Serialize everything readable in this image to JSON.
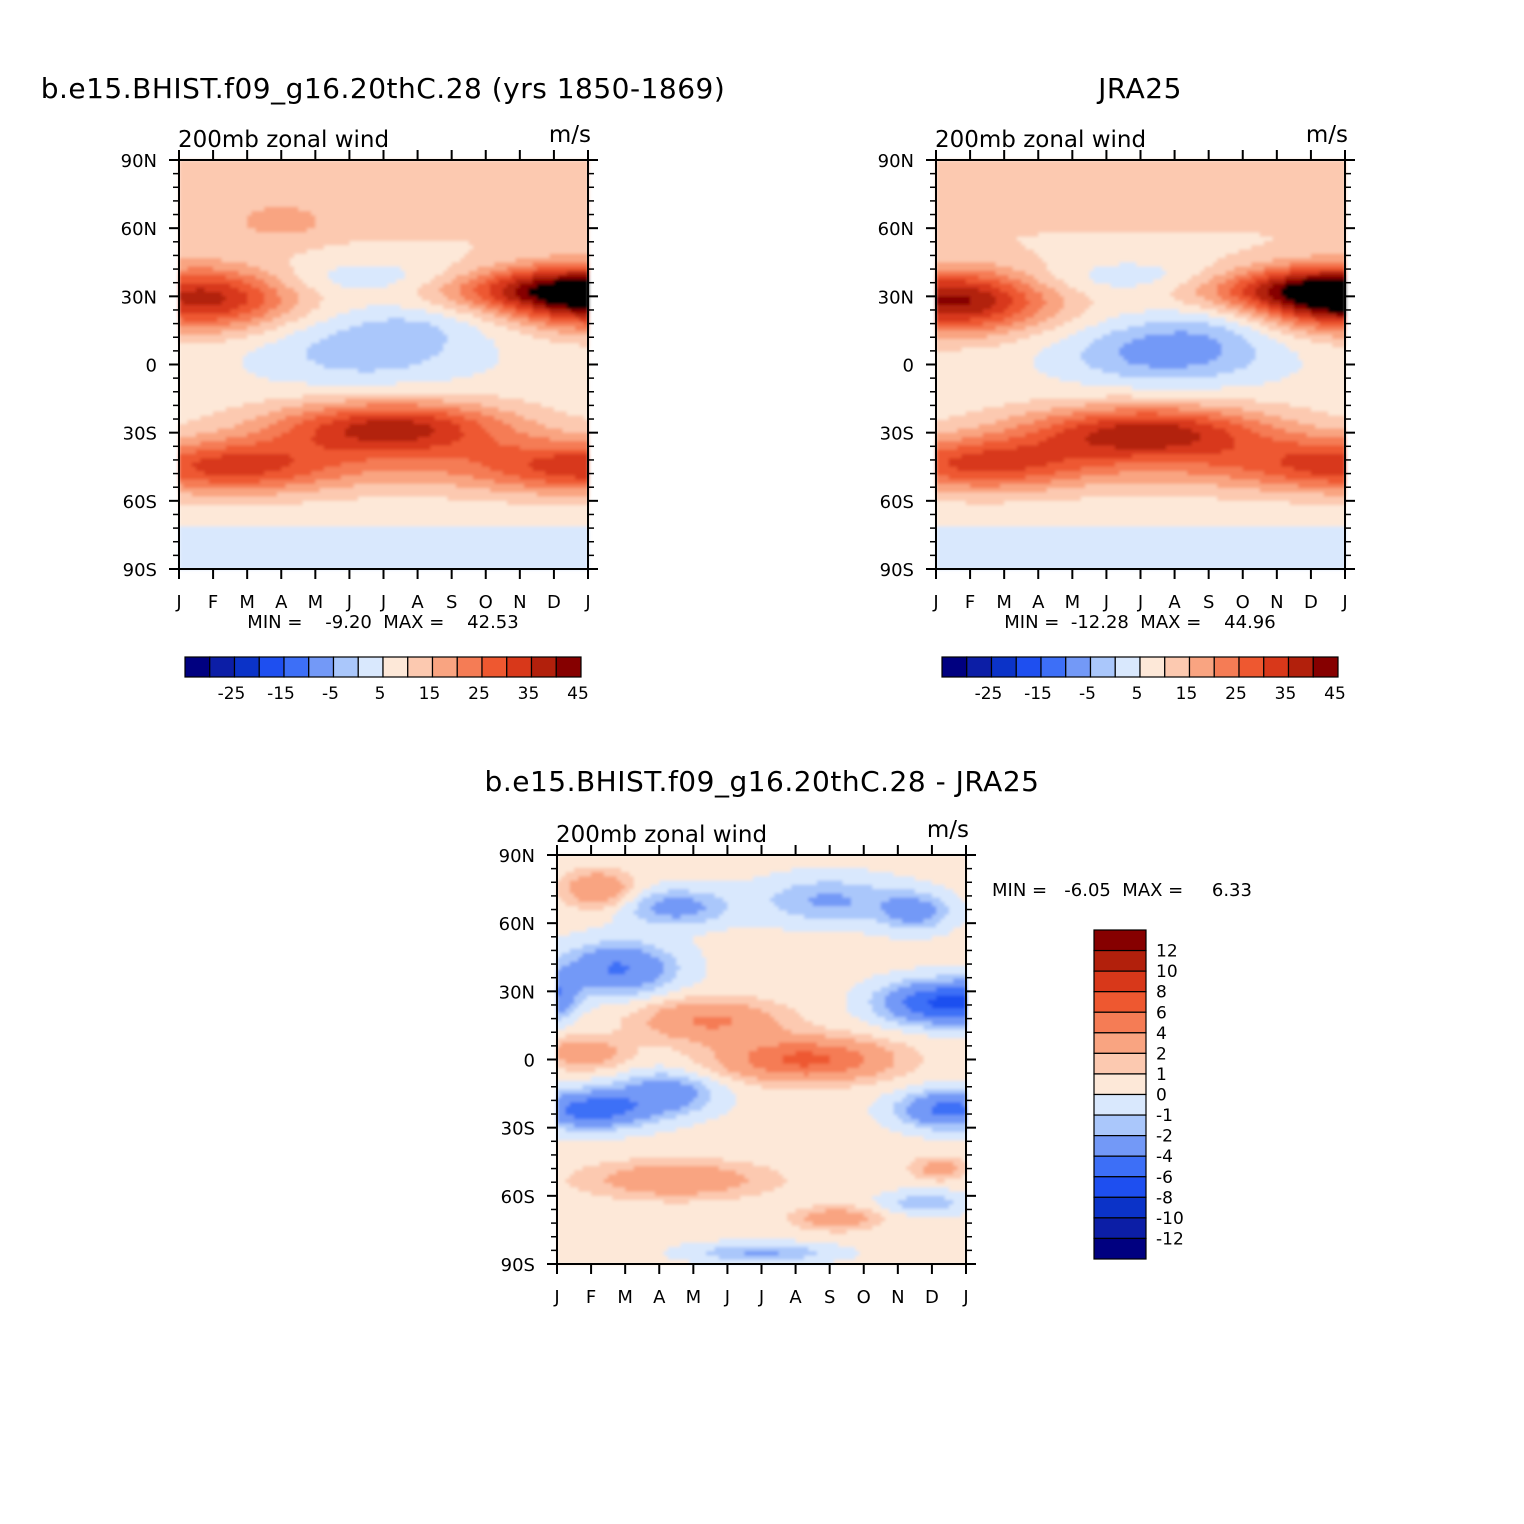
{
  "chart_data": [
    {
      "type": "heatmap",
      "id": "model",
      "title": "b.e15.BHIST.f09_g16.20thC.28 (yrs 1850-1869)",
      "left_string": "200mb zonal wind",
      "right_string": "m/s",
      "x_ticks": [
        "J",
        "F",
        "M",
        "A",
        "M",
        "J",
        "J",
        "A",
        "S",
        "O",
        "N",
        "D",
        "J"
      ],
      "y_ticks": [
        "90N",
        "60N",
        "30N",
        "0",
        "30S",
        "60S",
        "90S"
      ],
      "min_max_label": "MIN =    -9.20  MAX =    42.53",
      "min": -9.2,
      "max": 42.53,
      "contour_levels": [
        -35,
        -30,
        -25,
        -20,
        -15,
        -10,
        -5,
        0,
        5,
        10,
        15,
        20,
        25,
        30,
        35,
        40,
        45
      ],
      "colorbar_labels": [
        "-25",
        "-15",
        "-5",
        "5",
        "15",
        "25",
        "35",
        "45"
      ],
      "colors": [
        "#000080",
        "#0c1ea6",
        "#0b33c8",
        "#1e4ff0",
        "#3d6ff7",
        "#7399f7",
        "#aac7fb",
        "#d9e8fd",
        "#fde8d8",
        "#fcc9b0",
        "#f9a481",
        "#f57c55",
        "#ee5830",
        "#d8381a",
        "#b2200c",
        "#860000"
      ]
    },
    {
      "type": "heatmap",
      "id": "obs",
      "title": "JRA25",
      "left_string": "200mb zonal wind",
      "right_string": "m/s",
      "x_ticks": [
        "J",
        "F",
        "M",
        "A",
        "M",
        "J",
        "J",
        "A",
        "S",
        "O",
        "N",
        "D",
        "J"
      ],
      "y_ticks": [
        "90N",
        "60N",
        "30N",
        "0",
        "30S",
        "60S",
        "90S"
      ],
      "min_max_label": "MIN =  -12.28  MAX =    44.96",
      "min": -12.28,
      "max": 44.96,
      "colorbar_labels": [
        "-25",
        "-15",
        "-5",
        "5",
        "15",
        "25",
        "35",
        "45"
      ]
    },
    {
      "type": "heatmap",
      "id": "diff",
      "title": "b.e15.BHIST.f09_g16.20thC.28 - JRA25",
      "left_string": "200mb zonal wind",
      "right_string": "m/s",
      "x_ticks": [
        "J",
        "F",
        "M",
        "A",
        "M",
        "J",
        "J",
        "A",
        "S",
        "O",
        "N",
        "D",
        "J"
      ],
      "y_ticks": [
        "90N",
        "60N",
        "30N",
        "0",
        "30S",
        "60S",
        "90S"
      ],
      "min_max_label": "MIN =   -6.05  MAX =     6.33",
      "min": -6.05,
      "max": 6.33,
      "contour_levels": [
        -12,
        -10,
        -8,
        -6,
        -4,
        -2,
        -1,
        0,
        1,
        2,
        4,
        6,
        8,
        10,
        12
      ],
      "colorbar_labels": [
        "12",
        "10",
        "8",
        "6",
        "4",
        "2",
        "1",
        "0",
        "-1",
        "-2",
        "-4",
        "-6",
        "-8",
        "-10",
        "-12"
      ],
      "colors": [
        "#000080",
        "#0c1ea6",
        "#0b33c8",
        "#1e4ff0",
        "#3d6ff7",
        "#7399f7",
        "#aac7fb",
        "#d9e8fd",
        "#fde8d8",
        "#fcc9b0",
        "#f9a481",
        "#f57c55",
        "#ee5830",
        "#d8381a",
        "#b2200c",
        "#860000"
      ]
    }
  ]
}
